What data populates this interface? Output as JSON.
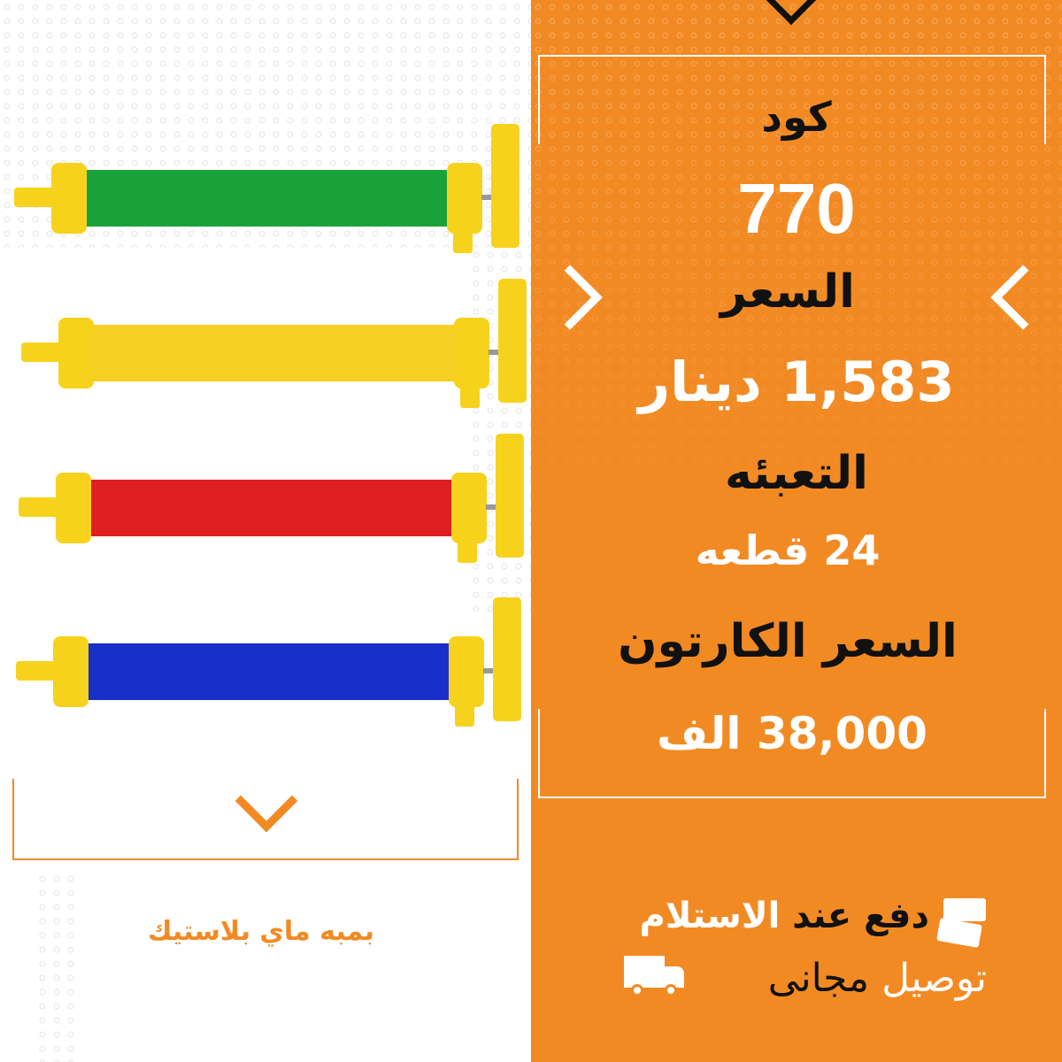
{
  "product": {
    "name": "بمبه ماي بلاستيك",
    "colors": [
      "#1aa23a",
      "#f7d21c",
      "#e02020",
      "#1730c8"
    ]
  },
  "info": {
    "code_label": "كود",
    "code_value": "770",
    "price_label": "السعر",
    "price_value": "1,583 دينار",
    "packing_label": "التعبئه",
    "packing_value": "24 قطعه",
    "carton_label": "السعر الكارتون",
    "carton_value": "38,000 الف"
  },
  "services": {
    "cod_dark": "دفع عند",
    "cod_light": "الاستلام",
    "delivery_light": "توصيل",
    "delivery_dark": "مجانى"
  },
  "colors": {
    "accent": "#f28a24",
    "white": "#ffffff",
    "text": "#111111"
  }
}
